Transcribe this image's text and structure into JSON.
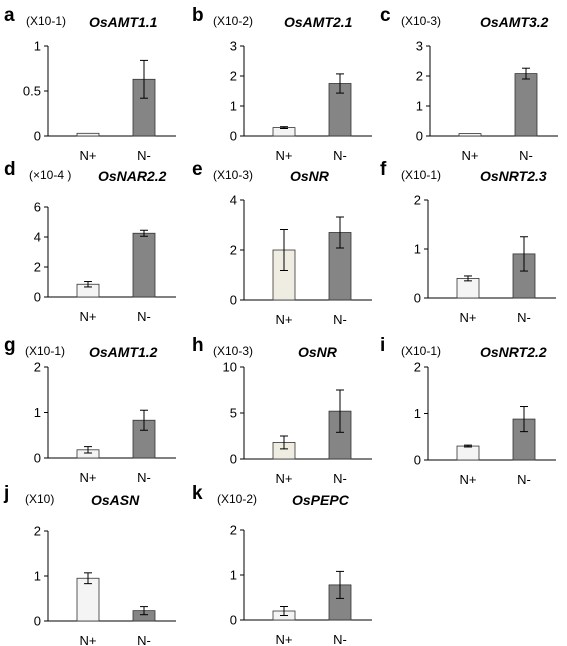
{
  "chart_data": [
    {
      "panel": "a",
      "type": "bar",
      "title": "OsAMT1.1",
      "unit": "(X10-1)",
      "categories": [
        "N+",
        "N-"
      ],
      "values": [
        0.03,
        0.63
      ],
      "errors": [
        0.0,
        0.21
      ],
      "ylim": [
        0,
        1
      ],
      "yticks": [
        "0",
        "0.5",
        "1"
      ],
      "ytick_values": [
        0,
        0.5,
        1
      ],
      "colors": [
        "#f4f4f4",
        "#858585"
      ]
    },
    {
      "panel": "b",
      "type": "bar",
      "title": "OsAMT2.1",
      "unit": "(X10-2)",
      "categories": [
        "N+",
        "N-"
      ],
      "values": [
        0.28,
        1.75
      ],
      "errors": [
        0.03,
        0.32
      ],
      "ylim": [
        0,
        3
      ],
      "yticks": [
        "0",
        "1",
        "2",
        "3"
      ],
      "ytick_values": [
        0,
        1,
        2,
        3
      ],
      "colors": [
        "#f4f4f4",
        "#858585"
      ]
    },
    {
      "panel": "c",
      "type": "bar",
      "title": "OsAMT3.2",
      "unit": "(X10-3)",
      "categories": [
        "N+",
        "N-"
      ],
      "values": [
        0.08,
        2.08
      ],
      "errors": [
        0.0,
        0.18
      ],
      "ylim": [
        0,
        3
      ],
      "yticks": [
        "0",
        "1",
        "2",
        "3"
      ],
      "ytick_values": [
        0,
        1,
        2,
        3
      ],
      "colors": [
        "#f4f4f4",
        "#858585"
      ]
    },
    {
      "panel": "d",
      "type": "bar",
      "title": "OsNAR2.2",
      "unit": "(×10-4 )",
      "categories": [
        "N+",
        "N-"
      ],
      "values": [
        0.85,
        4.25
      ],
      "errors": [
        0.18,
        0.2
      ],
      "ylim": [
        0,
        6
      ],
      "yticks": [
        "0",
        "2",
        "4",
        "6"
      ],
      "ytick_values": [
        0,
        2,
        4,
        6
      ],
      "colors": [
        "#f4f4f4",
        "#858585"
      ]
    },
    {
      "panel": "e",
      "type": "bar",
      "title": "OsNR",
      "unit": "(X10-3)",
      "categories": [
        "N+",
        "N-"
      ],
      "values": [
        2.0,
        2.7
      ],
      "errors": [
        0.82,
        0.62
      ],
      "ylim": [
        0,
        4
      ],
      "yticks": [
        "0",
        "2",
        "4"
      ],
      "ytick_values": [
        0,
        2,
        4
      ],
      "colors": [
        "#efede1",
        "#858585"
      ]
    },
    {
      "panel": "f",
      "type": "bar",
      "title": "OsNRT2.3",
      "unit": "(X10-1)",
      "categories": [
        "N+",
        "N-"
      ],
      "values": [
        0.4,
        0.9
      ],
      "errors": [
        0.05,
        0.35
      ],
      "ylim": [
        0,
        2
      ],
      "yticks": [
        "0",
        "1",
        "2"
      ],
      "ytick_values": [
        0,
        1,
        2
      ],
      "colors": [
        "#f4f4f4",
        "#858585"
      ]
    },
    {
      "panel": "g",
      "type": "bar",
      "title": "OsAMT1.2",
      "unit": "(X10-1)",
      "categories": [
        "N+",
        "N-"
      ],
      "values": [
        0.18,
        0.83
      ],
      "errors": [
        0.07,
        0.22
      ],
      "ylim": [
        0,
        2
      ],
      "yticks": [
        "0",
        "1",
        "2"
      ],
      "ytick_values": [
        0,
        1,
        2
      ],
      "colors": [
        "#f4f4f4",
        "#858585"
      ]
    },
    {
      "panel": "h",
      "type": "bar",
      "title": "OsNR",
      "unit": "(X10-3)",
      "categories": [
        "N+",
        "N-"
      ],
      "values": [
        1.8,
        5.2
      ],
      "errors": [
        0.7,
        2.3
      ],
      "ylim": [
        0,
        10
      ],
      "yticks": [
        "0",
        "5",
        "10"
      ],
      "ytick_values": [
        0,
        5,
        10
      ],
      "colors": [
        "#efede1",
        "#858585"
      ]
    },
    {
      "panel": "i",
      "type": "bar",
      "title": "OsNRT2.2",
      "unit": "(X10-1)",
      "categories": [
        "N+",
        "N-"
      ],
      "values": [
        0.3,
        0.88
      ],
      "errors": [
        0.02,
        0.27
      ],
      "ylim": [
        0,
        2
      ],
      "yticks": [
        "0",
        "1",
        "2"
      ],
      "ytick_values": [
        0,
        1,
        2
      ],
      "colors": [
        "#f4f4f4",
        "#858585"
      ]
    },
    {
      "panel": "j",
      "type": "bar",
      "title": "OsASN",
      "unit": "(X10)",
      "categories": [
        "N+",
        "N-"
      ],
      "values": [
        0.95,
        0.23
      ],
      "errors": [
        0.12,
        0.09
      ],
      "ylim": [
        0,
        2
      ],
      "yticks": [
        "0",
        "1",
        "2"
      ],
      "ytick_values": [
        0,
        1,
        2
      ],
      "colors": [
        "#f4f4f4",
        "#858585"
      ]
    },
    {
      "panel": "k",
      "type": "bar",
      "title": "OsPEPC",
      "unit": "(X10-2)",
      "categories": [
        "N+",
        "N-"
      ],
      "values": [
        0.2,
        0.78
      ],
      "errors": [
        0.1,
        0.3
      ],
      "ylim": [
        0,
        2
      ],
      "yticks": [
        "0",
        "1",
        "2"
      ],
      "ytick_values": [
        0,
        1,
        2
      ],
      "colors": [
        "#f4f4f4",
        "#858585"
      ]
    }
  ]
}
